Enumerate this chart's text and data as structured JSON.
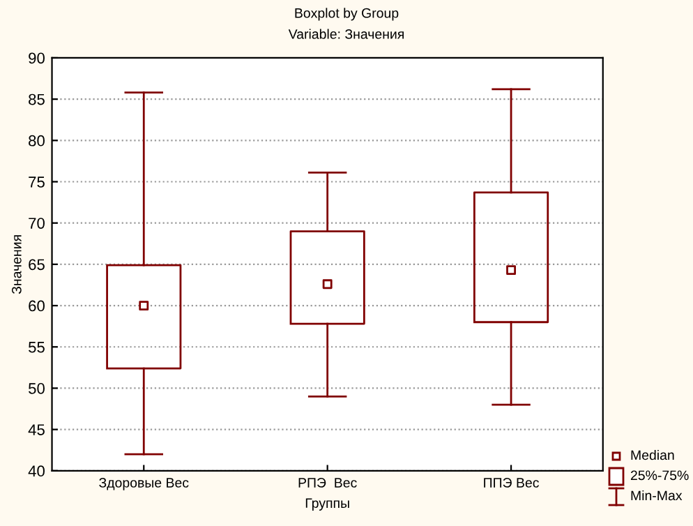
{
  "chart_data": {
    "type": "box",
    "title": "Boxplot by Group",
    "subtitle": "Variable: Значения",
    "xlabel": "Группы",
    "ylabel": "Значения",
    "categories": [
      "Здоровые Вес",
      "РПЭ  Вес",
      "ППЭ Вес"
    ],
    "boxes": [
      {
        "low": 42.0,
        "q1": 52.4,
        "median": 60.0,
        "q3": 64.9,
        "high": 85.8
      },
      {
        "low": 49.0,
        "q1": 57.8,
        "median": 62.6,
        "q3": 69.0,
        "high": 76.1
      },
      {
        "low": 48.0,
        "q1": 58.0,
        "median": 64.3,
        "q3": 73.7,
        "high": 86.2
      }
    ],
    "color": "#800000",
    "ylim": [
      40,
      90
    ],
    "yticks": [
      40,
      45,
      50,
      55,
      60,
      65,
      70,
      75,
      80,
      85,
      90
    ],
    "grid": "y",
    "marker": "square",
    "annotations": [
      "Median",
      "25%-75%",
      "Min-Max"
    ]
  }
}
